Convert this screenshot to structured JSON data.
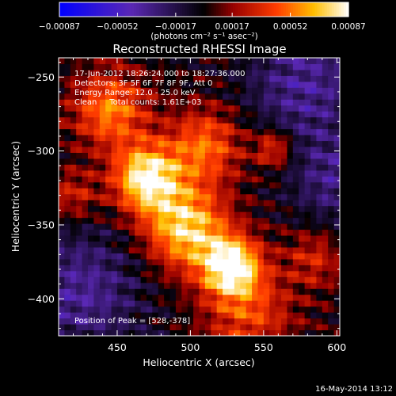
{
  "chart_data": {
    "type": "heatmap",
    "title": "Reconstructed RHESSI Image",
    "xlabel": "Heliocentric X (arcsec)",
    "ylabel": "Heliocentric Y (arcsec)",
    "xlim": [
      410,
      602
    ],
    "ylim": [
      -425,
      -237
    ],
    "x_ticks": [
      450,
      500,
      550,
      600
    ],
    "x_tick_labels": [
      "450",
      "500",
      "550",
      "600"
    ],
    "y_ticks": [
      -250,
      -300,
      -350,
      -400
    ],
    "y_tick_labels": [
      "−250",
      "−300",
      "−350",
      "−400"
    ],
    "colorbar": {
      "min": -0.00087,
      "max": 0.00087,
      "ticks": [
        -0.00087,
        -0.00052,
        -0.00017,
        0.00017,
        0.00052,
        0.00087
      ],
      "tick_labels": [
        "−0.00087",
        "−0.00052",
        "−0.00017",
        "0.00017",
        "0.00052",
        "0.00087"
      ],
      "unit_label": "(photons cm⁻² s⁻¹ asec⁻²)"
    },
    "annotations": [
      "17-Jun-2012 18:26:24.000 to 18:27:36.000",
      "Detectors: 3F 5F 6F 7F 8F 9F, Att 0",
      "Energy Range: 12.0 - 25.0 keV",
      "Clean     Total counts: 1.61E+03"
    ],
    "peak_label": "Position of Peak = [528,-378]",
    "peak": [
      528,
      -378
    ],
    "sources": [
      {
        "x": 470,
        "y": -318,
        "amplitude": 0.00085,
        "sigma": 16
      },
      {
        "x": 528,
        "y": -378,
        "amplitude": 0.00087,
        "sigma": 14
      },
      {
        "x": 497,
        "y": -352,
        "amplitude": 0.00075,
        "sigma": 20
      },
      {
        "x": 445,
        "y": -272,
        "amplitude": 0.00055,
        "sigma": 18
      },
      {
        "x": 510,
        "y": -296,
        "amplitude": 0.0005,
        "sigma": 18
      },
      {
        "x": 557,
        "y": -298,
        "amplitude": 0.00042,
        "sigma": 9
      },
      {
        "x": 540,
        "y": -410,
        "amplitude": 0.0004,
        "sigma": 22
      },
      {
        "x": 585,
        "y": -372,
        "amplitude": 0.0003,
        "sigma": 14
      },
      {
        "x": 420,
        "y": -330,
        "amplitude": 0.0003,
        "sigma": 12
      },
      {
        "x": 578,
        "y": -255,
        "amplitude": -0.00035,
        "sigma": 28
      },
      {
        "x": 425,
        "y": -395,
        "amplitude": -0.00035,
        "sigma": 30
      },
      {
        "x": 600,
        "y": -320,
        "amplitude": -0.0003,
        "sigma": 22
      }
    ]
  },
  "footer": {
    "timestamp": "16-May-2014 13:12"
  }
}
